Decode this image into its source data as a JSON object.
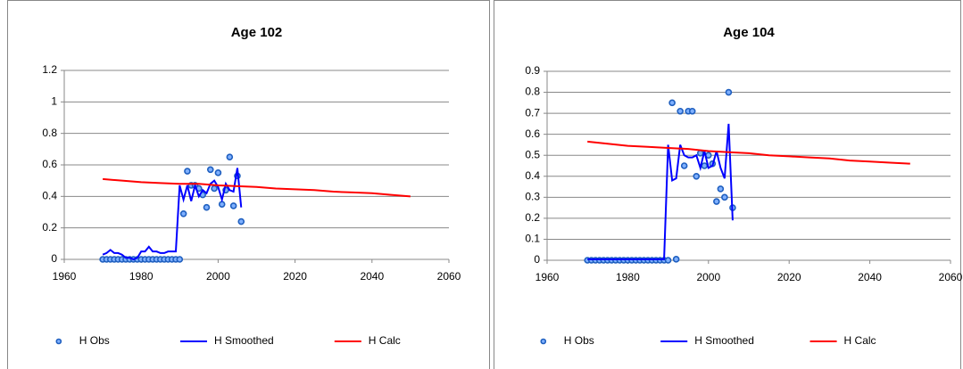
{
  "chart_data": [
    {
      "type": "line",
      "title": "Age 102",
      "grid": true,
      "xlim": [
        1960,
        2060
      ],
      "xticks": [
        1960,
        1980,
        2000,
        2020,
        2040,
        2060
      ],
      "ylim": [
        0,
        1.2
      ],
      "yticks": [
        0,
        0.2,
        0.4,
        0.6,
        0.8,
        1,
        1.2
      ],
      "series": [
        {
          "name": "H Obs",
          "kind": "scatter",
          "color": "#1f5fbf",
          "x": [
            1970,
            1971,
            1972,
            1973,
            1974,
            1975,
            1976,
            1977,
            1978,
            1979,
            1980,
            1981,
            1982,
            1983,
            1984,
            1985,
            1986,
            1987,
            1988,
            1989,
            1990,
            1991,
            1992,
            1993,
            1994,
            1995,
            1996,
            1997,
            1998,
            1999,
            2000,
            2001,
            2002,
            2003,
            2004,
            2005,
            2006
          ],
          "values": [
            0,
            0,
            0,
            0,
            0,
            0,
            0,
            0,
            0,
            0,
            0,
            0,
            0,
            0,
            0,
            0,
            0,
            0,
            0,
            0,
            0,
            0.29,
            0.56,
            0.47,
            0.47,
            0.45,
            0.41,
            0.33,
            0.57,
            0.45,
            0.55,
            0.35,
            0.44,
            0.65,
            0.34,
            0.53,
            0.24
          ]
        },
        {
          "name": "H Smoothed",
          "kind": "line",
          "color": "#0000ff",
          "x": [
            1970,
            1971,
            1972,
            1973,
            1974,
            1975,
            1976,
            1977,
            1978,
            1979,
            1980,
            1981,
            1982,
            1983,
            1984,
            1985,
            1986,
            1987,
            1988,
            1989,
            1990,
            1991,
            1992,
            1993,
            1994,
            1995,
            1996,
            1997,
            1998,
            1999,
            2000,
            2001,
            2002,
            2003,
            2004,
            2005,
            2006
          ],
          "values": [
            0.03,
            0.04,
            0.06,
            0.04,
            0.04,
            0.03,
            0.01,
            0.01,
            0,
            0.01,
            0.05,
            0.05,
            0.08,
            0.05,
            0.05,
            0.04,
            0.04,
            0.05,
            0.05,
            0.05,
            0.47,
            0.38,
            0.47,
            0.37,
            0.47,
            0.4,
            0.44,
            0.42,
            0.48,
            0.5,
            0.46,
            0.38,
            0.48,
            0.44,
            0.43,
            0.58,
            0.33
          ]
        },
        {
          "name": "H Calc",
          "kind": "line",
          "color": "#ff0000",
          "x": [
            1970,
            1975,
            1980,
            1985,
            1990,
            1995,
            2000,
            2005,
            2010,
            2015,
            2020,
            2025,
            2030,
            2035,
            2040,
            2045,
            2050
          ],
          "values": [
            0.51,
            0.5,
            0.49,
            0.485,
            0.48,
            0.48,
            0.47,
            0.465,
            0.46,
            0.45,
            0.445,
            0.44,
            0.43,
            0.425,
            0.42,
            0.41,
            0.4
          ]
        }
      ]
    },
    {
      "type": "line",
      "title": "Age 104",
      "grid": true,
      "xlim": [
        1960,
        2060
      ],
      "xticks": [
        1960,
        1980,
        2000,
        2020,
        2040,
        2060
      ],
      "ylim": [
        0,
        0.9
      ],
      "yticks": [
        0,
        0.1,
        0.2,
        0.3,
        0.4,
        0.5,
        0.6,
        0.7,
        0.8,
        0.9
      ],
      "series": [
        {
          "name": "H Obs",
          "kind": "scatter",
          "color": "#1f5fbf",
          "x": [
            1970,
            1971,
            1972,
            1973,
            1974,
            1975,
            1976,
            1977,
            1978,
            1979,
            1980,
            1981,
            1982,
            1983,
            1984,
            1985,
            1986,
            1987,
            1988,
            1989,
            1990,
            1991,
            1992,
            1993,
            1994,
            1995,
            1996,
            1997,
            1998,
            1999,
            2000,
            2001,
            2002,
            2003,
            2004,
            2005,
            2006
          ],
          "values": [
            0,
            0,
            0,
            0,
            0,
            0,
            0,
            0,
            0,
            0,
            0,
            0,
            0,
            0,
            0,
            0,
            0,
            0,
            0,
            0,
            0,
            0.75,
            0.005,
            0.71,
            0.45,
            0.71,
            0.71,
            0.4,
            0.51,
            0.45,
            0.5,
            0.46,
            0.28,
            0.34,
            0.3,
            0.8,
            0.25
          ]
        },
        {
          "name": "H Smoothed",
          "kind": "line",
          "color": "#0000ff",
          "x": [
            1970,
            1971,
            1972,
            1973,
            1974,
            1975,
            1976,
            1977,
            1978,
            1979,
            1980,
            1981,
            1982,
            1983,
            1984,
            1985,
            1986,
            1987,
            1988,
            1989,
            1990,
            1991,
            1992,
            1993,
            1994,
            1995,
            1996,
            1997,
            1998,
            1999,
            2000,
            2001,
            2002,
            2003,
            2004,
            2005,
            2006
          ],
          "values": [
            0.005,
            0.005,
            0.005,
            0.005,
            0.005,
            0.005,
            0.005,
            0.005,
            0.005,
            0.005,
            0.005,
            0.005,
            0.005,
            0.005,
            0.005,
            0.005,
            0.005,
            0.005,
            0.005,
            0.005,
            0.55,
            0.38,
            0.39,
            0.55,
            0.5,
            0.49,
            0.49,
            0.5,
            0.44,
            0.52,
            0.44,
            0.45,
            0.52,
            0.44,
            0.39,
            0.65,
            0.19
          ]
        },
        {
          "name": "H Calc",
          "kind": "line",
          "color": "#ff0000",
          "x": [
            1970,
            1975,
            1980,
            1985,
            1990,
            1995,
            2000,
            2005,
            2010,
            2015,
            2020,
            2025,
            2030,
            2035,
            2040,
            2045,
            2050
          ],
          "values": [
            0.565,
            0.555,
            0.545,
            0.54,
            0.535,
            0.53,
            0.52,
            0.515,
            0.51,
            0.5,
            0.495,
            0.49,
            0.485,
            0.475,
            0.47,
            0.465,
            0.46
          ]
        }
      ]
    }
  ]
}
